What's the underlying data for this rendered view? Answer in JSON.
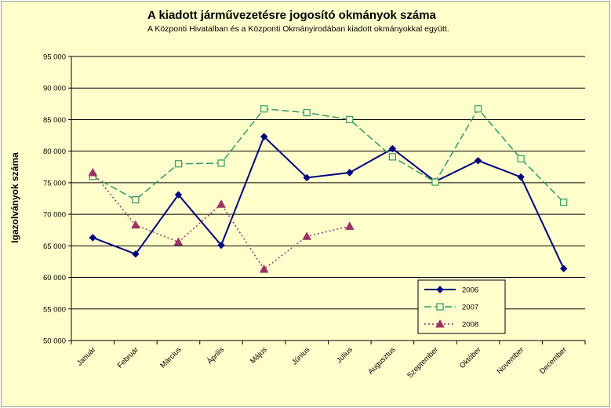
{
  "chart_data": {
    "type": "line",
    "title": "A  kiadott járművezetésre  jogosító okmányok száma",
    "subtitle": "A  Központi Hivatalban és a Központi Okmányirodában kiadott okmányokkal együtt.",
    "xlabel": "",
    "ylabel": "Igazolványok száma",
    "ylim": [
      50000,
      95000
    ],
    "ytick_step": 5000,
    "yticks": [
      "50 000",
      "55 000",
      "60 000",
      "65 000",
      "70 000",
      "75 000",
      "80 000",
      "85 000",
      "90 000",
      "95 000"
    ],
    "grid": "horizontal",
    "legend_position": "bottom-right",
    "categories": [
      "Január",
      "Február",
      "Március",
      "Április",
      "Május",
      "Június",
      "Július",
      "Augusztus",
      "Szeptember",
      "Október",
      "November",
      "December"
    ],
    "series": [
      {
        "name": "2006",
        "color": "#000080",
        "style": "solid",
        "marker": "diamond",
        "values": [
          66300,
          63700,
          73100,
          65100,
          82300,
          75800,
          76600,
          80400,
          75200,
          78500,
          75900,
          61400
        ]
      },
      {
        "name": "2007",
        "color": "#339966",
        "style": "dashed",
        "marker": "square",
        "values": [
          76000,
          72300,
          78000,
          78100,
          86700,
          86100,
          85000,
          79100,
          75100,
          86700,
          78800,
          71900
        ]
      },
      {
        "name": "2008",
        "color": "#993366",
        "style": "dotted",
        "marker": "triangle",
        "values": [
          76600,
          68300,
          65600,
          71600,
          61300,
          66500,
          68100,
          null,
          null,
          null,
          null,
          null
        ]
      }
    ]
  }
}
